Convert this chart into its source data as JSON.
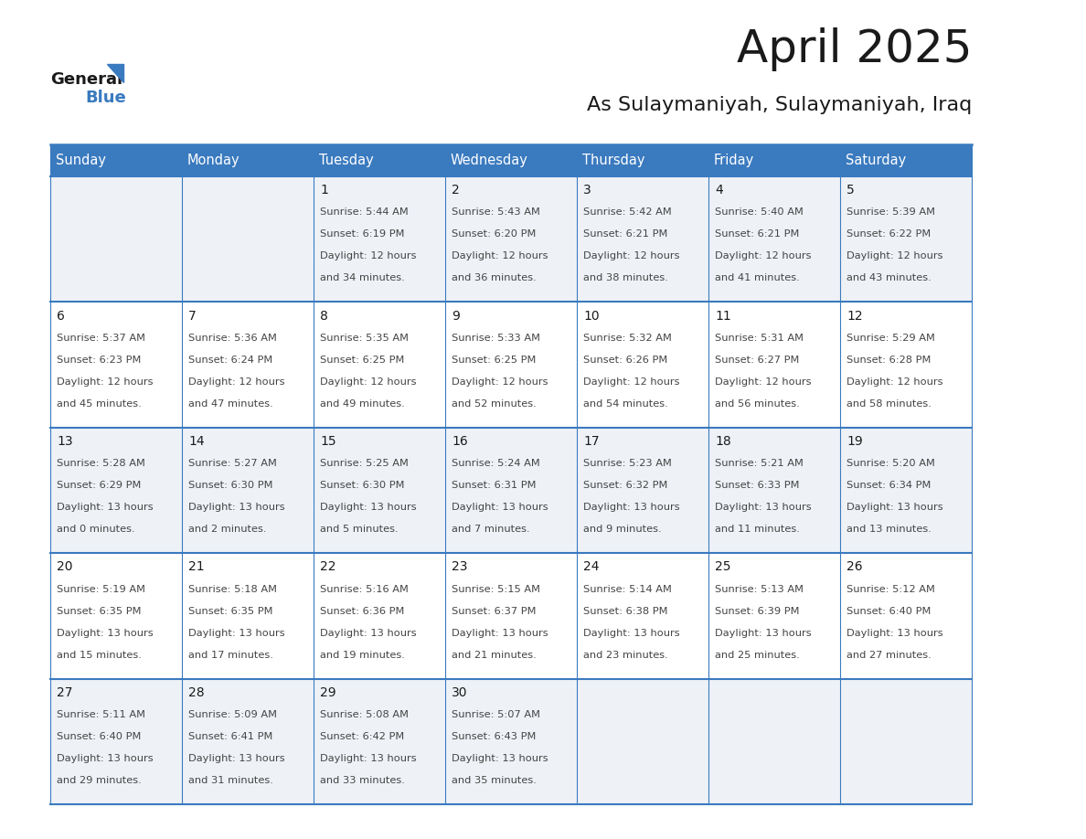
{
  "title": "April 2025",
  "subtitle": "As Sulaymaniyah, Sulaymaniyah, Iraq",
  "header_bg": "#3a7abf",
  "header_text": "#ffffff",
  "row_bg_light": "#eef2f7",
  "row_bg_white": "#ffffff",
  "border_color": "#3a7abf",
  "text_dark": "#1a1a1a",
  "text_body": "#444444",
  "day_headers": [
    "Sunday",
    "Monday",
    "Tuesday",
    "Wednesday",
    "Thursday",
    "Friday",
    "Saturday"
  ],
  "days": [
    {
      "day": 1,
      "col": 2,
      "row": 0,
      "sunrise": "5:44 AM",
      "sunset": "6:19 PM",
      "daylight_hours": 12,
      "daylight_minutes": 34
    },
    {
      "day": 2,
      "col": 3,
      "row": 0,
      "sunrise": "5:43 AM",
      "sunset": "6:20 PM",
      "daylight_hours": 12,
      "daylight_minutes": 36
    },
    {
      "day": 3,
      "col": 4,
      "row": 0,
      "sunrise": "5:42 AM",
      "sunset": "6:21 PM",
      "daylight_hours": 12,
      "daylight_minutes": 38
    },
    {
      "day": 4,
      "col": 5,
      "row": 0,
      "sunrise": "5:40 AM",
      "sunset": "6:21 PM",
      "daylight_hours": 12,
      "daylight_minutes": 41
    },
    {
      "day": 5,
      "col": 6,
      "row": 0,
      "sunrise": "5:39 AM",
      "sunset": "6:22 PM",
      "daylight_hours": 12,
      "daylight_minutes": 43
    },
    {
      "day": 6,
      "col": 0,
      "row": 1,
      "sunrise": "5:37 AM",
      "sunset": "6:23 PM",
      "daylight_hours": 12,
      "daylight_minutes": 45
    },
    {
      "day": 7,
      "col": 1,
      "row": 1,
      "sunrise": "5:36 AM",
      "sunset": "6:24 PM",
      "daylight_hours": 12,
      "daylight_minutes": 47
    },
    {
      "day": 8,
      "col": 2,
      "row": 1,
      "sunrise": "5:35 AM",
      "sunset": "6:25 PM",
      "daylight_hours": 12,
      "daylight_minutes": 49
    },
    {
      "day": 9,
      "col": 3,
      "row": 1,
      "sunrise": "5:33 AM",
      "sunset": "6:25 PM",
      "daylight_hours": 12,
      "daylight_minutes": 52
    },
    {
      "day": 10,
      "col": 4,
      "row": 1,
      "sunrise": "5:32 AM",
      "sunset": "6:26 PM",
      "daylight_hours": 12,
      "daylight_minutes": 54
    },
    {
      "day": 11,
      "col": 5,
      "row": 1,
      "sunrise": "5:31 AM",
      "sunset": "6:27 PM",
      "daylight_hours": 12,
      "daylight_minutes": 56
    },
    {
      "day": 12,
      "col": 6,
      "row": 1,
      "sunrise": "5:29 AM",
      "sunset": "6:28 PM",
      "daylight_hours": 12,
      "daylight_minutes": 58
    },
    {
      "day": 13,
      "col": 0,
      "row": 2,
      "sunrise": "5:28 AM",
      "sunset": "6:29 PM",
      "daylight_hours": 13,
      "daylight_minutes": 0
    },
    {
      "day": 14,
      "col": 1,
      "row": 2,
      "sunrise": "5:27 AM",
      "sunset": "6:30 PM",
      "daylight_hours": 13,
      "daylight_minutes": 2
    },
    {
      "day": 15,
      "col": 2,
      "row": 2,
      "sunrise": "5:25 AM",
      "sunset": "6:30 PM",
      "daylight_hours": 13,
      "daylight_minutes": 5
    },
    {
      "day": 16,
      "col": 3,
      "row": 2,
      "sunrise": "5:24 AM",
      "sunset": "6:31 PM",
      "daylight_hours": 13,
      "daylight_minutes": 7
    },
    {
      "day": 17,
      "col": 4,
      "row": 2,
      "sunrise": "5:23 AM",
      "sunset": "6:32 PM",
      "daylight_hours": 13,
      "daylight_minutes": 9
    },
    {
      "day": 18,
      "col": 5,
      "row": 2,
      "sunrise": "5:21 AM",
      "sunset": "6:33 PM",
      "daylight_hours": 13,
      "daylight_minutes": 11
    },
    {
      "day": 19,
      "col": 6,
      "row": 2,
      "sunrise": "5:20 AM",
      "sunset": "6:34 PM",
      "daylight_hours": 13,
      "daylight_minutes": 13
    },
    {
      "day": 20,
      "col": 0,
      "row": 3,
      "sunrise": "5:19 AM",
      "sunset": "6:35 PM",
      "daylight_hours": 13,
      "daylight_minutes": 15
    },
    {
      "day": 21,
      "col": 1,
      "row": 3,
      "sunrise": "5:18 AM",
      "sunset": "6:35 PM",
      "daylight_hours": 13,
      "daylight_minutes": 17
    },
    {
      "day": 22,
      "col": 2,
      "row": 3,
      "sunrise": "5:16 AM",
      "sunset": "6:36 PM",
      "daylight_hours": 13,
      "daylight_minutes": 19
    },
    {
      "day": 23,
      "col": 3,
      "row": 3,
      "sunrise": "5:15 AM",
      "sunset": "6:37 PM",
      "daylight_hours": 13,
      "daylight_minutes": 21
    },
    {
      "day": 24,
      "col": 4,
      "row": 3,
      "sunrise": "5:14 AM",
      "sunset": "6:38 PM",
      "daylight_hours": 13,
      "daylight_minutes": 23
    },
    {
      "day": 25,
      "col": 5,
      "row": 3,
      "sunrise": "5:13 AM",
      "sunset": "6:39 PM",
      "daylight_hours": 13,
      "daylight_minutes": 25
    },
    {
      "day": 26,
      "col": 6,
      "row": 3,
      "sunrise": "5:12 AM",
      "sunset": "6:40 PM",
      "daylight_hours": 13,
      "daylight_minutes": 27
    },
    {
      "day": 27,
      "col": 0,
      "row": 4,
      "sunrise": "5:11 AM",
      "sunset": "6:40 PM",
      "daylight_hours": 13,
      "daylight_minutes": 29
    },
    {
      "day": 28,
      "col": 1,
      "row": 4,
      "sunrise": "5:09 AM",
      "sunset": "6:41 PM",
      "daylight_hours": 13,
      "daylight_minutes": 31
    },
    {
      "day": 29,
      "col": 2,
      "row": 4,
      "sunrise": "5:08 AM",
      "sunset": "6:42 PM",
      "daylight_hours": 13,
      "daylight_minutes": 33
    },
    {
      "day": 30,
      "col": 3,
      "row": 4,
      "sunrise": "5:07 AM",
      "sunset": "6:43 PM",
      "daylight_hours": 13,
      "daylight_minutes": 35
    }
  ],
  "num_rows": 5,
  "num_cols": 7
}
